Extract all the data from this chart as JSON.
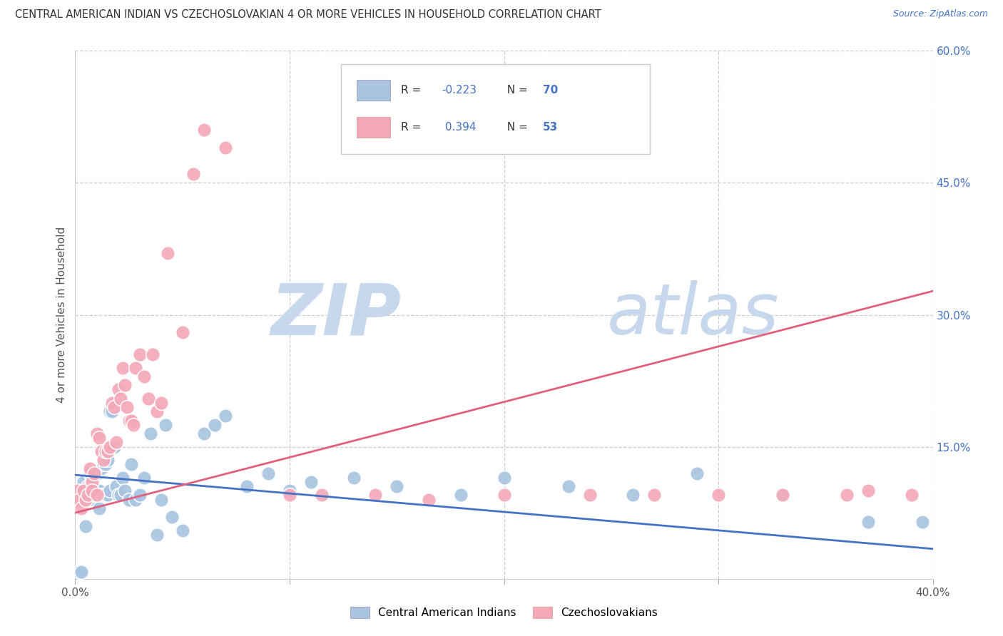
{
  "title": "CENTRAL AMERICAN INDIAN VS CZECHOSLOVAKIAN 4 OR MORE VEHICLES IN HOUSEHOLD CORRELATION CHART",
  "source": "Source: ZipAtlas.com",
  "ylabel": "4 or more Vehicles in Household",
  "xlim": [
    0.0,
    0.4
  ],
  "ylim": [
    0.0,
    0.6
  ],
  "ytick_labels_right": [
    "60.0%",
    "45.0%",
    "30.0%",
    "15.0%"
  ],
  "ytick_vals_right": [
    0.6,
    0.45,
    0.3,
    0.15
  ],
  "grid_hvals": [
    0.6,
    0.45,
    0.3,
    0.15
  ],
  "grid_vvals": [
    0.1,
    0.2,
    0.3,
    0.4
  ],
  "color_blue": "#a8c4e0",
  "color_pink": "#f4a8b8",
  "color_line_blue": "#4472c4",
  "color_line_pink": "#e06080",
  "watermark_zip": "#c8d8ec",
  "watermark_atlas": "#c8d8ec",
  "blue_r": -0.223,
  "blue_n": 70,
  "pink_r": 0.394,
  "pink_n": 53,
  "blue_intercept": 0.118,
  "blue_slope": -0.21,
  "pink_intercept": 0.075,
  "pink_slope": 0.63,
  "blue_x": [
    0.001,
    0.002,
    0.002,
    0.003,
    0.003,
    0.004,
    0.004,
    0.004,
    0.005,
    0.005,
    0.005,
    0.006,
    0.006,
    0.007,
    0.007,
    0.007,
    0.008,
    0.008,
    0.008,
    0.009,
    0.009,
    0.01,
    0.01,
    0.011,
    0.011,
    0.012,
    0.012,
    0.013,
    0.013,
    0.014,
    0.014,
    0.015,
    0.015,
    0.016,
    0.016,
    0.017,
    0.018,
    0.019,
    0.02,
    0.021,
    0.022,
    0.023,
    0.025,
    0.026,
    0.028,
    0.03,
    0.032,
    0.035,
    0.038,
    0.04,
    0.042,
    0.045,
    0.05,
    0.06,
    0.065,
    0.07,
    0.08,
    0.09,
    0.1,
    0.11,
    0.13,
    0.15,
    0.18,
    0.2,
    0.23,
    0.26,
    0.29,
    0.33,
    0.37,
    0.395
  ],
  "blue_y": [
    0.005,
    0.008,
    0.09,
    0.008,
    0.1,
    0.09,
    0.1,
    0.11,
    0.1,
    0.095,
    0.06,
    0.09,
    0.105,
    0.095,
    0.105,
    0.12,
    0.09,
    0.105,
    0.115,
    0.09,
    0.095,
    0.1,
    0.12,
    0.1,
    0.08,
    0.095,
    0.125,
    0.095,
    0.13,
    0.095,
    0.13,
    0.095,
    0.135,
    0.19,
    0.1,
    0.19,
    0.15,
    0.105,
    0.095,
    0.095,
    0.115,
    0.1,
    0.09,
    0.13,
    0.09,
    0.095,
    0.115,
    0.165,
    0.05,
    0.09,
    0.175,
    0.07,
    0.055,
    0.165,
    0.175,
    0.185,
    0.105,
    0.12,
    0.1,
    0.11,
    0.115,
    0.105,
    0.095,
    0.115,
    0.105,
    0.095,
    0.12,
    0.095,
    0.065,
    0.065
  ],
  "pink_x": [
    0.001,
    0.002,
    0.003,
    0.004,
    0.005,
    0.006,
    0.007,
    0.008,
    0.008,
    0.009,
    0.01,
    0.01,
    0.011,
    0.012,
    0.013,
    0.014,
    0.015,
    0.016,
    0.017,
    0.018,
    0.019,
    0.02,
    0.021,
    0.022,
    0.023,
    0.024,
    0.025,
    0.026,
    0.027,
    0.028,
    0.03,
    0.032,
    0.034,
    0.036,
    0.038,
    0.04,
    0.043,
    0.05,
    0.055,
    0.06,
    0.07,
    0.1,
    0.115,
    0.14,
    0.165,
    0.2,
    0.24,
    0.27,
    0.3,
    0.33,
    0.36,
    0.37,
    0.39
  ],
  "pink_y": [
    0.1,
    0.09,
    0.08,
    0.1,
    0.09,
    0.095,
    0.125,
    0.11,
    0.1,
    0.12,
    0.095,
    0.165,
    0.16,
    0.145,
    0.135,
    0.145,
    0.145,
    0.15,
    0.2,
    0.195,
    0.155,
    0.215,
    0.205,
    0.24,
    0.22,
    0.195,
    0.18,
    0.18,
    0.175,
    0.24,
    0.255,
    0.23,
    0.205,
    0.255,
    0.19,
    0.2,
    0.37,
    0.28,
    0.46,
    0.51,
    0.49,
    0.095,
    0.095,
    0.095,
    0.09,
    0.095,
    0.095,
    0.095,
    0.095,
    0.095,
    0.095,
    0.1,
    0.095
  ]
}
